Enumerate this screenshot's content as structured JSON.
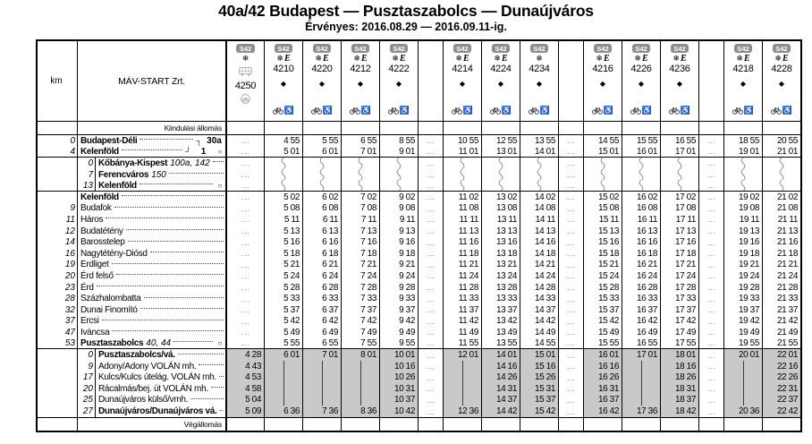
{
  "header": {
    "title": "40a/42 Budapest — Pusztaszabolcs — Dunaújváros",
    "validity": "Érvényes: 2016.08.29 — 2016.09.11-ig.",
    "km_label": "km",
    "operator": "MÁV-START Zrt.",
    "origin_label": "Kiindulási állomás",
    "terminus_label": "Végállomás"
  },
  "symbols": {
    "badge": "S42",
    "snowflake": "❄",
    "express_letter": "E",
    "diamond": "◆",
    "wheelchair": "♿",
    "circle": "○",
    "bracket_top": "┐",
    "bracket_bottom": "┘",
    "dots": "...",
    "bike_icon": "bicycle",
    "bus_icon": "replacement-bus",
    "no_bike_icon": "bicycle-in-circle"
  },
  "colors": {
    "shade": "#c9c9c9",
    "badge_bg": "#8e8e8e",
    "muted_gray": "#7d7d7d",
    "icon_gray": "#a8a8a8"
  },
  "columns": [
    {
      "kind": "train",
      "number": "4250",
      "badge": "S42",
      "snowflake": true,
      "express": false,
      "bus": true,
      "diamond": false,
      "bike_wheelchair": false,
      "no_bike_circle": true
    },
    {
      "kind": "train",
      "number": "4210",
      "badge": "S42",
      "snowflake": true,
      "express": true,
      "diamond": true,
      "bike_wheelchair": true
    },
    {
      "kind": "train",
      "number": "4220",
      "badge": "S42",
      "snowflake": true,
      "express": true,
      "diamond": true,
      "bike_wheelchair": true
    },
    {
      "kind": "train",
      "number": "4212",
      "badge": "S42",
      "snowflake": true,
      "express": true,
      "diamond": true,
      "bike_wheelchair": true
    },
    {
      "kind": "train",
      "number": "4222",
      "badge": "S42",
      "snowflake": true,
      "express": true,
      "diamond": true,
      "bike_wheelchair": true
    },
    {
      "kind": "sep"
    },
    {
      "kind": "train",
      "number": "4214",
      "badge": "S42",
      "snowflake": true,
      "express": true,
      "diamond": true,
      "bike_wheelchair": true
    },
    {
      "kind": "train",
      "number": "4224",
      "badge": "S42",
      "snowflake": true,
      "express": true,
      "diamond": true,
      "bike_wheelchair": true
    },
    {
      "kind": "train",
      "number": "4234",
      "badge": "S42",
      "snowflake": true,
      "express": false,
      "diamond": true,
      "bike_wheelchair": true
    },
    {
      "kind": "sep"
    },
    {
      "kind": "train",
      "number": "4216",
      "badge": "S42",
      "snowflake": true,
      "express": true,
      "diamond": true,
      "bike_wheelchair": true
    },
    {
      "kind": "train",
      "number": "4226",
      "badge": "S42",
      "snowflake": true,
      "express": true,
      "diamond": true,
      "bike_wheelchair": true
    },
    {
      "kind": "train",
      "number": "4236",
      "badge": "S42",
      "snowflake": true,
      "express": true,
      "diamond": true,
      "bike_wheelchair": true
    },
    {
      "kind": "sep"
    },
    {
      "kind": "train",
      "number": "4218",
      "badge": "S42",
      "snowflake": true,
      "express": true,
      "diamond": true,
      "bike_wheelchair": true
    },
    {
      "kind": "train",
      "number": "4228",
      "badge": "S42",
      "snowflake": true,
      "express": true,
      "diamond": true,
      "bike_wheelchair": true
    }
  ],
  "rows": [
    {
      "section": "budapest",
      "km": "0",
      "name": "Budapest-Déli",
      "bold": true,
      "bracket": "top",
      "right": "30a",
      "cells": [
        ".",
        "4 55",
        "5 55",
        "6 55",
        "8 55",
        ".",
        "10 55",
        "12 55",
        "13 55",
        ".",
        "14 55",
        "15 55",
        "16 55",
        ".",
        "18 55",
        "20 55"
      ]
    },
    {
      "section": "budapest",
      "km": "4",
      "name": "Kelenföld",
      "bold": true,
      "bracket": "bottom",
      "right": "1",
      "circle": true,
      "cells": [
        ".",
        "5 01",
        "6 01",
        "7 01",
        "9 01",
        ".",
        "11 01",
        "13 01",
        "14 01",
        ".",
        "15 01",
        "16 01",
        "17 01",
        ".",
        "19 01",
        "21 01"
      ]
    },
    {
      "section": "alt",
      "subkm": "0",
      "name": "Kőbánya-Kispest",
      "bold": true,
      "note": "100a, 142",
      "cells": [
        ".",
        "~",
        "~",
        "~",
        "~",
        ".",
        "~",
        "~",
        "~",
        ".",
        "~",
        "~",
        "~",
        ".",
        "~",
        "~"
      ]
    },
    {
      "section": "alt",
      "subkm": "7",
      "name": "Ferencváros",
      "bold": true,
      "note": "150",
      "cells": [
        ".",
        "~",
        "~",
        "~",
        "~",
        ".",
        "~",
        "~",
        "~",
        ".",
        "~",
        "~",
        "~",
        ".",
        "~",
        "~"
      ]
    },
    {
      "section": "alt",
      "subkm": "13",
      "name": "Kelenföld",
      "bold": true,
      "circle": true,
      "cells": [
        ".",
        "~",
        "~",
        "~",
        "~",
        ".",
        "~",
        "~",
        "~",
        ".",
        "~",
        "~",
        "~",
        ".",
        "~",
        "~"
      ]
    },
    {
      "section": "main",
      "km": "",
      "name": "Kelenföld",
      "bold": true,
      "cells": [
        ".",
        "5 02",
        "6 02",
        "7 02",
        "9 02",
        ".",
        "11 02",
        "13 02",
        "14 02",
        ".",
        "15 02",
        "16 02",
        "17 02",
        ".",
        "19 02",
        "21 02"
      ]
    },
    {
      "section": "main",
      "km": "9",
      "name": "Budafok",
      "cells": [
        ".",
        "5 08",
        "6 08",
        "7 08",
        "9 08",
        ".",
        "11 08",
        "13 08",
        "14 08",
        ".",
        "15 08",
        "16 08",
        "17 08",
        ".",
        "19 08",
        "21 08"
      ]
    },
    {
      "section": "main",
      "km": "11",
      "name": "Háros",
      "cells": [
        ".",
        "5 11",
        "6 11",
        "7 11",
        "9 11",
        ".",
        "11 11",
        "13 11",
        "14 11",
        ".",
        "15 11",
        "16 11",
        "17 11",
        ".",
        "19 11",
        "21 11"
      ]
    },
    {
      "section": "main",
      "km": "12",
      "name": "Budatétény",
      "cells": [
        ".",
        "5 13",
        "6 13",
        "7 13",
        "9 13",
        ".",
        "11 13",
        "13 13",
        "14 13",
        ".",
        "15 13",
        "16 13",
        "17 13",
        ".",
        "19 13",
        "21 13"
      ]
    },
    {
      "section": "main",
      "km": "14",
      "name": "Barosstelep",
      "cells": [
        ".",
        "5 16",
        "6 16",
        "7 16",
        "9 16",
        ".",
        "11 16",
        "13 16",
        "14 16",
        ".",
        "15 16",
        "16 16",
        "17 16",
        ".",
        "19 16",
        "21 16"
      ]
    },
    {
      "section": "main",
      "km": "16",
      "name": "Nagytétény-Diósd",
      "cells": [
        ".",
        "5 18",
        "6 18",
        "7 18",
        "9 18",
        ".",
        "11 18",
        "13 18",
        "14 18",
        ".",
        "15 18",
        "16 18",
        "17 18",
        ".",
        "19 18",
        "21 18"
      ]
    },
    {
      "section": "main",
      "km": "19",
      "name": "Érdliget",
      "cells": [
        ".",
        "5 21",
        "6 21",
        "7 21",
        "9 21",
        ".",
        "11 21",
        "13 21",
        "14 21",
        ".",
        "15 21",
        "16 21",
        "17 21",
        ".",
        "19 21",
        "21 21"
      ]
    },
    {
      "section": "main",
      "km": "20",
      "name": "Érd felső",
      "cells": [
        ".",
        "5 24",
        "6 24",
        "7 24",
        "9 24",
        ".",
        "11 24",
        "13 24",
        "14 24",
        ".",
        "15 24",
        "16 24",
        "17 24",
        ".",
        "19 24",
        "21 24"
      ]
    },
    {
      "section": "main",
      "km": "23",
      "name": "Érd",
      "cells": [
        ".",
        "5 28",
        "6 28",
        "7 28",
        "9 28",
        ".",
        "11 28",
        "13 28",
        "14 28",
        ".",
        "15 28",
        "16 28",
        "17 28",
        ".",
        "19 28",
        "21 28"
      ]
    },
    {
      "section": "main",
      "km": "28",
      "name": "Százhalombatta",
      "cells": [
        ".",
        "5 33",
        "6 33",
        "7 33",
        "9 33",
        ".",
        "11 33",
        "13 33",
        "14 33",
        ".",
        "15 33",
        "16 33",
        "17 33",
        ".",
        "19 33",
        "21 33"
      ]
    },
    {
      "section": "main",
      "km": "32",
      "name": "Dunai Finomító",
      "cells": [
        ".",
        "5 37",
        "6 37",
        "7 37",
        "9 37",
        ".",
        "11 37",
        "13 37",
        "14 37",
        ".",
        "15 37",
        "16 37",
        "17 37",
        ".",
        "19 37",
        "21 37"
      ]
    },
    {
      "section": "main",
      "km": "37",
      "name": "Ercsi",
      "cells": [
        ".",
        "5 42",
        "6 42",
        "7 42",
        "9 42",
        ".",
        "11 42",
        "13 42",
        "14 42",
        ".",
        "15 42",
        "16 42",
        "17 42",
        ".",
        "19 42",
        "21 42"
      ]
    },
    {
      "section": "main",
      "km": "47",
      "name": "Iváncsa",
      "cells": [
        ".",
        "5 49",
        "6 49",
        "7 49",
        "9 49",
        ".",
        "11 49",
        "13 49",
        "14 49",
        ".",
        "15 49",
        "16 49",
        "17 49",
        ".",
        "19 49",
        "21 49"
      ]
    },
    {
      "section": "main",
      "km": "53",
      "name": "Pusztaszabolcs",
      "bold": true,
      "note": "40, 44",
      "circle": true,
      "cells": [
        ".",
        "5 55",
        "6 55",
        "7 55",
        "9 55",
        ".",
        "11 55",
        "13 55",
        "14 55",
        ".",
        "15 55",
        "16 55",
        "17 55",
        ".",
        "19 55",
        "21 55"
      ]
    },
    {
      "section": "shaded",
      "subkm": "0",
      "name": "Pusztaszabolcs/vá.",
      "bold": true,
      "cells": [
        "4 28",
        "6 01",
        "7 01",
        "8 01",
        "10 01",
        ".",
        "12 01",
        "14 01",
        "15 01",
        ".",
        "16 01",
        "17 01",
        "18 01",
        ".",
        "20 01",
        "22 01"
      ]
    },
    {
      "section": "shaded",
      "subkm": "9",
      "name": "Adony/Adony VOLÁN mh.",
      "cells": [
        "4 43",
        "|",
        "|",
        "|",
        "10 16",
        ".",
        "|",
        "14 16",
        "15 16",
        ".",
        "16 16",
        "|",
        "18 16",
        ".",
        "|",
        "22 16"
      ]
    },
    {
      "section": "shaded",
      "subkm": "17",
      "name": "Kulcs/Kulcs útelág. VOLÁN mh.",
      "cells": [
        "4 53",
        "|",
        "|",
        "|",
        "10 26",
        ".",
        "|",
        "14 26",
        "15 26",
        ".",
        "16 26",
        "|",
        "18 26",
        ".",
        "|",
        "22 26"
      ]
    },
    {
      "section": "shaded",
      "subkm": "20",
      "name": "Rácalmás/bej. út VOLÁN mh.",
      "cells": [
        "4 58",
        "|",
        "|",
        "|",
        "10 31",
        ".",
        "|",
        "14 31",
        "15 31",
        ".",
        "16 31",
        "|",
        "18 31",
        ".",
        "|",
        "22 31"
      ]
    },
    {
      "section": "shaded",
      "subkm": "25",
      "name": "Dunaújváros külső/vmh.",
      "cells": [
        "5 04",
        "|",
        "|",
        "|",
        "10 37",
        ".",
        "|",
        "14 37",
        "15 37",
        ".",
        "16 37",
        "|",
        "18 37",
        ".",
        "|",
        "22 37"
      ]
    },
    {
      "section": "shaded",
      "subkm": "27",
      "name": "Dunaújváros/Dunaújváros vá.",
      "bold": true,
      "circle": true,
      "cells": [
        "5 09",
        "6 36",
        "7 36",
        "8 36",
        "10 42",
        ".",
        "12 36",
        "14 42",
        "15 42",
        ".",
        "16 42",
        "17 36",
        "18 42",
        ".",
        "20 36",
        "22 42"
      ]
    }
  ]
}
